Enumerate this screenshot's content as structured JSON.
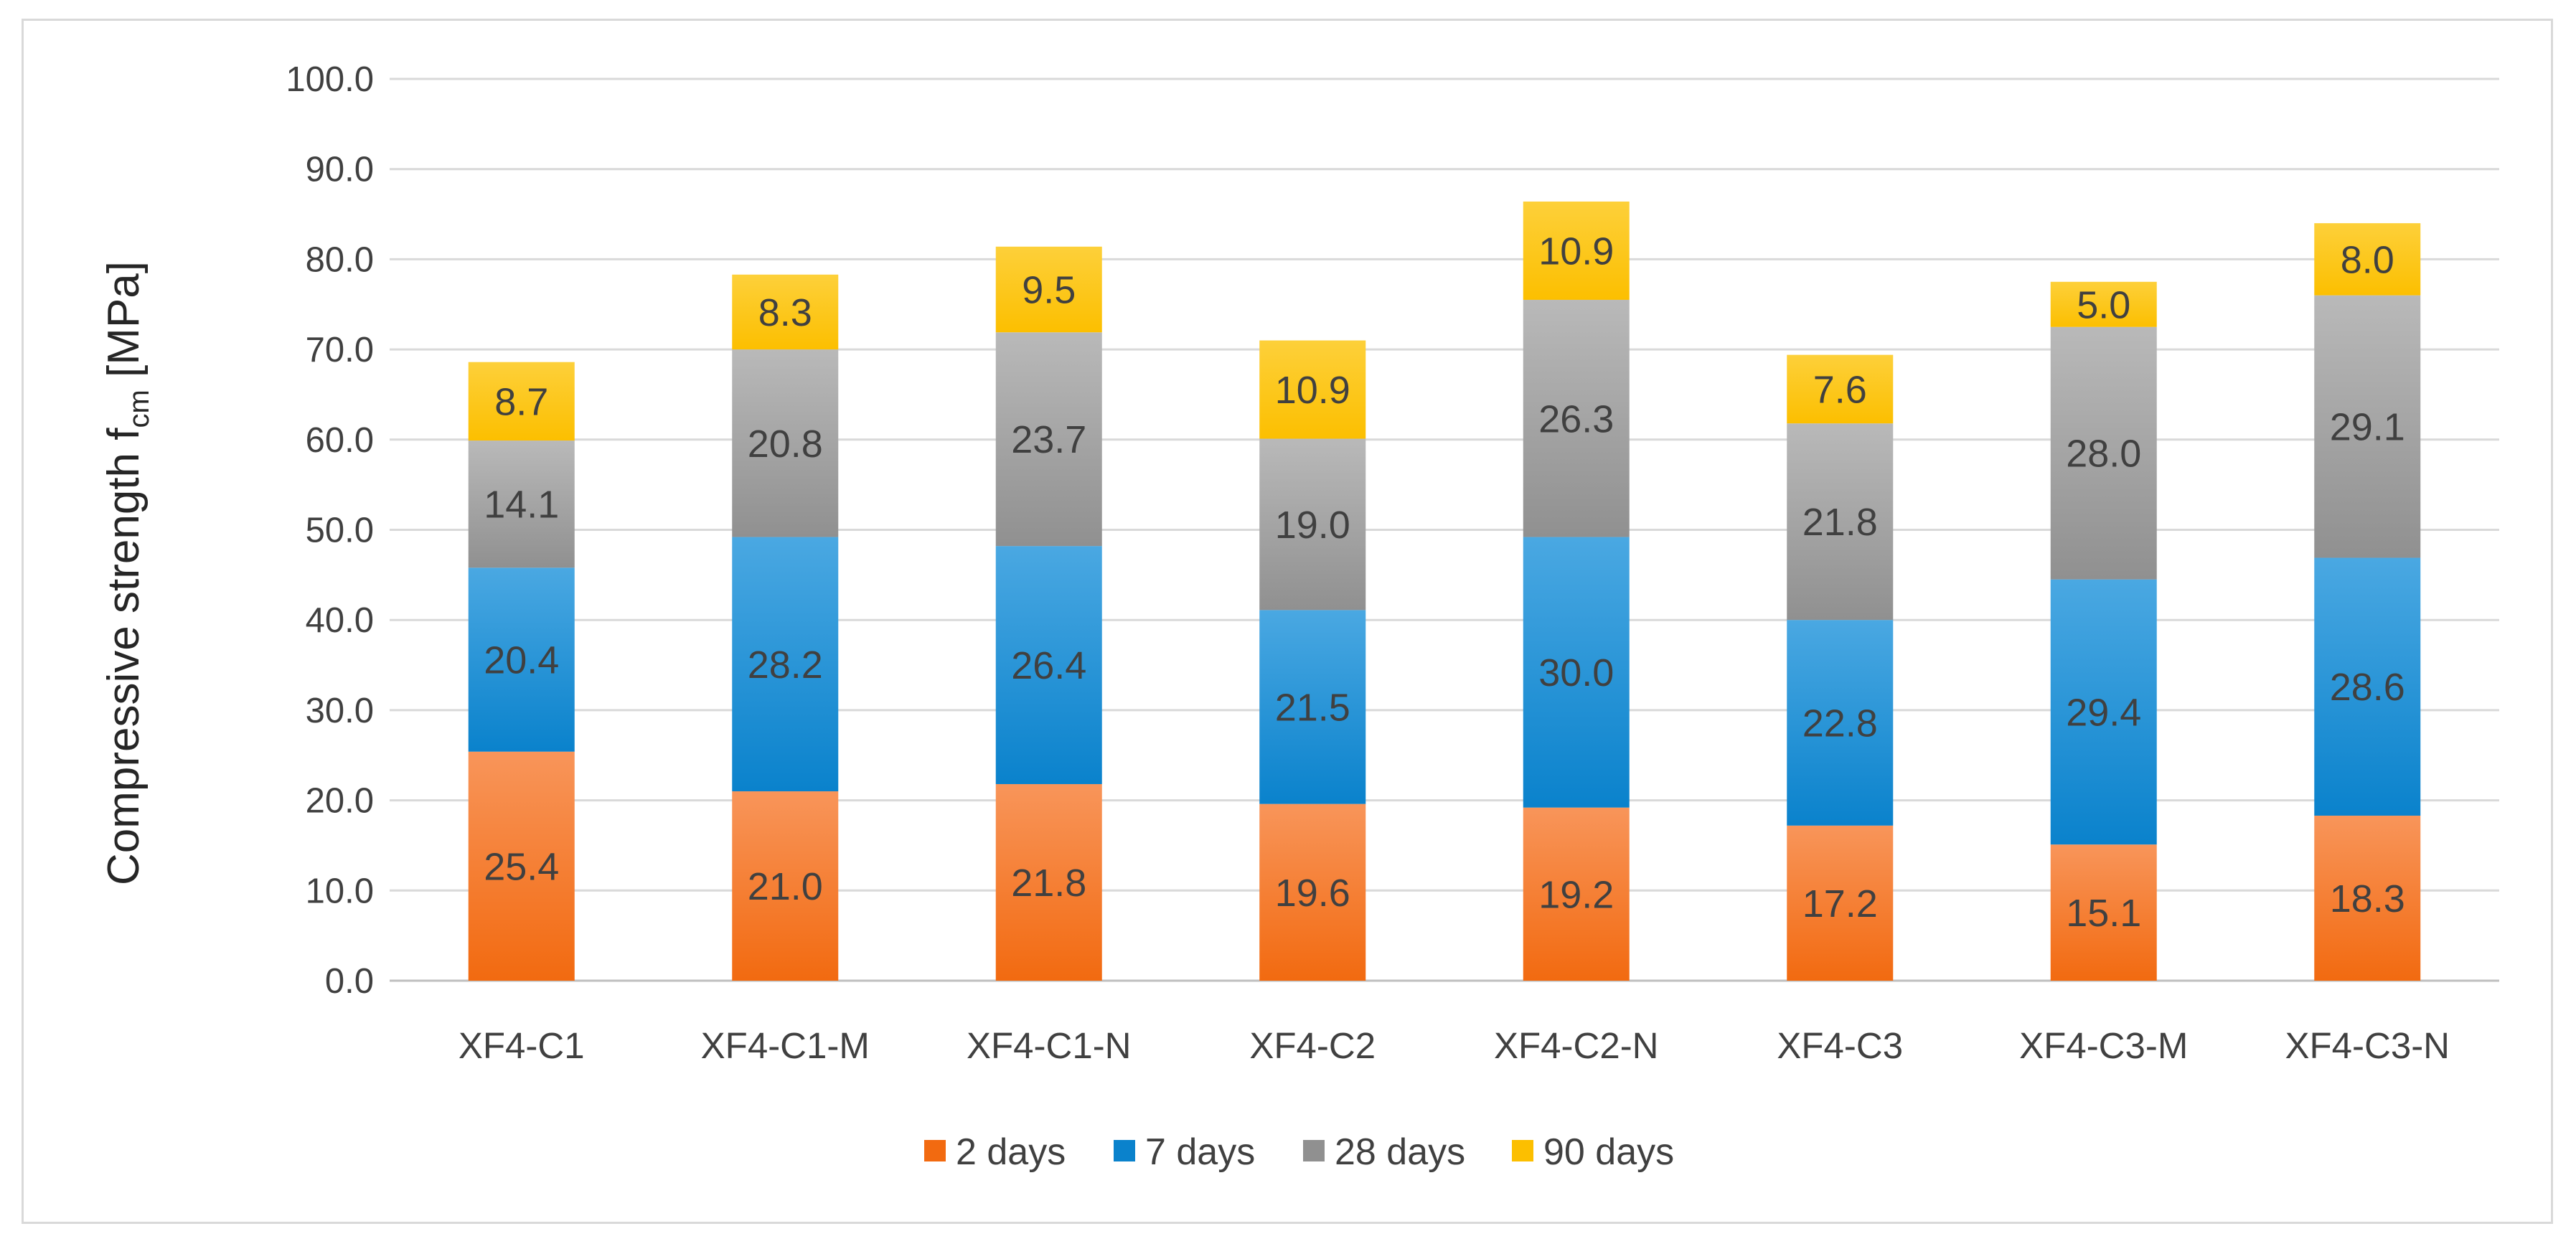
{
  "chart_data": {
    "type": "bar",
    "stacked": true,
    "title": "",
    "xlabel": "",
    "ylabel": "Compressive strength f",
    "ylabel_subscript": "cm",
    "ylabel_unit": "[MPa]",
    "ylim": [
      0,
      100
    ],
    "ytick_step": 10,
    "ytick_labels": [
      "0.0",
      "10.0",
      "20.0",
      "30.0",
      "40.0",
      "50.0",
      "60.0",
      "70.0",
      "80.0",
      "90.0",
      "100.0"
    ],
    "grid": true,
    "legend_position": "bottom",
    "categories": [
      "XF4-C1",
      "XF4-C1-M",
      "XF4-C1-N",
      "XF4-C2",
      "XF4-C2-N",
      "XF4-C3",
      "XF4-C3-M",
      "XF4-C3-N"
    ],
    "series": [
      {
        "name": "2 days",
        "color": "#f26a10",
        "color_light": "#f8955a",
        "values": [
          25.4,
          21.0,
          21.8,
          19.6,
          19.2,
          17.2,
          15.1,
          18.3
        ]
      },
      {
        "name": "7 days",
        "color": "#0a82cc",
        "color_light": "#4aa8e2",
        "values": [
          20.4,
          28.2,
          26.4,
          21.5,
          30.0,
          22.8,
          29.4,
          28.6
        ]
      },
      {
        "name": "28 days",
        "color": "#909090",
        "color_light": "#b9b9b9",
        "values": [
          14.1,
          20.8,
          23.7,
          19.0,
          26.3,
          21.8,
          28.0,
          29.1
        ]
      },
      {
        "name": "90 days",
        "color": "#fcbf00",
        "color_light": "#fdd03a",
        "values": [
          8.7,
          8.3,
          9.5,
          10.9,
          10.9,
          7.6,
          5.0,
          8.0
        ]
      }
    ]
  }
}
